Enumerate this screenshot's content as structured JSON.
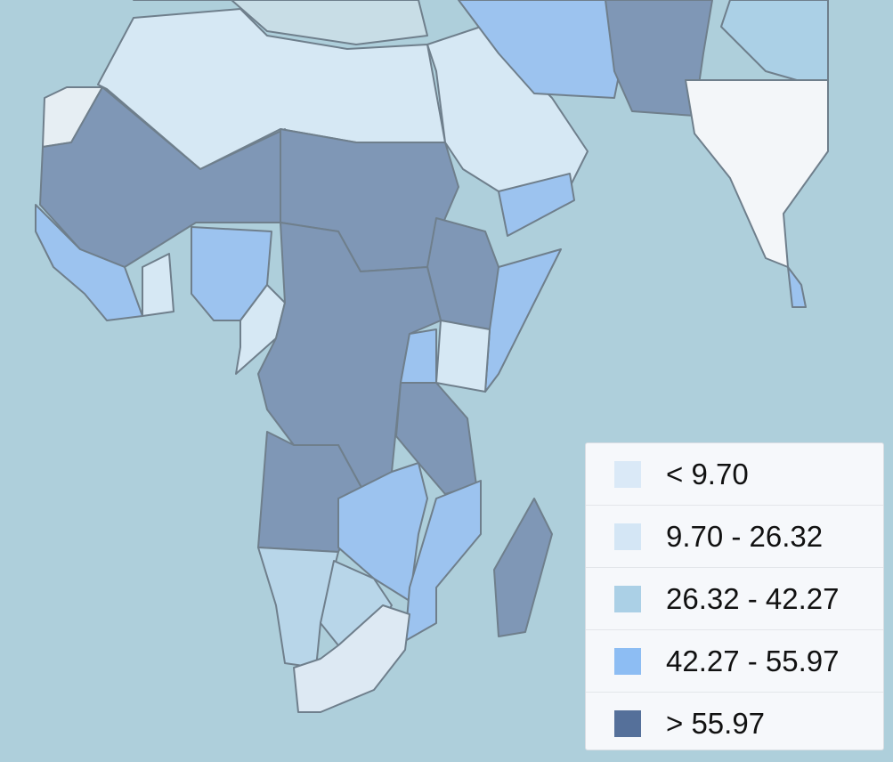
{
  "legend": {
    "items": [
      {
        "label": "< 9.70",
        "color": "#dae9f7"
      },
      {
        "label": "9.70 - 26.32",
        "color": "#d4e6f5"
      },
      {
        "label": "26.32 - 42.27",
        "color": "#abd0e6"
      },
      {
        "label": "42.27 - 55.97",
        "color": "#8dbdf3"
      },
      {
        "label": "> 55.97",
        "color": "#55709a"
      }
    ]
  }
}
